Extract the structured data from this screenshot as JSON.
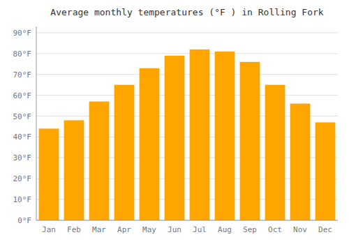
{
  "chart_data": {
    "type": "bar",
    "title": "Average monthly temperatures (°F ) in Rolling Fork",
    "categories": [
      "Jan",
      "Feb",
      "Mar",
      "Apr",
      "May",
      "Jun",
      "Jul",
      "Aug",
      "Sep",
      "Oct",
      "Nov",
      "Dec"
    ],
    "values": [
      44,
      48,
      57,
      65,
      73,
      79,
      82,
      81,
      76,
      65,
      56,
      47
    ],
    "color": "#FFA500",
    "ylim": [
      0,
      93
    ],
    "yticks": [
      {
        "value": 0,
        "label": "0°F"
      },
      {
        "value": 10,
        "label": "10°F"
      },
      {
        "value": 20,
        "label": "20°F"
      },
      {
        "value": 30,
        "label": "30°F"
      },
      {
        "value": 40,
        "label": "40°F"
      },
      {
        "value": 50,
        "label": "50°F"
      },
      {
        "value": 60,
        "label": "60°F"
      },
      {
        "value": 70,
        "label": "70°F"
      },
      {
        "value": 80,
        "label": "80°F"
      },
      {
        "value": 90,
        "label": "90°F"
      }
    ],
    "grid": true
  }
}
